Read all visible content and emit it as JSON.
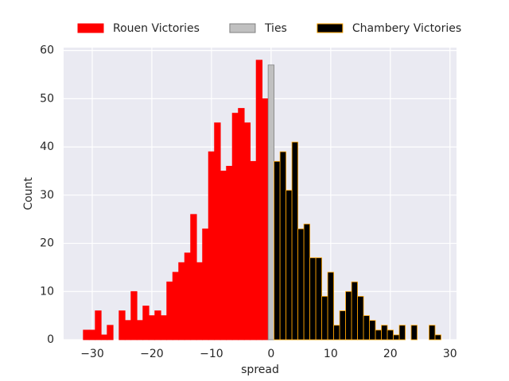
{
  "chart_data": {
    "type": "histogram",
    "x_label": "spread",
    "y_label": "Count",
    "xlim": [
      -34.8,
      31.1
    ],
    "ylim": [
      0,
      60.6
    ],
    "xticks": [
      {
        "value": -30,
        "label": "−30"
      },
      {
        "value": -20,
        "label": "−20"
      },
      {
        "value": -10,
        "label": "−10"
      },
      0,
      10,
      20,
      30
    ],
    "yticks": [
      0,
      10,
      20,
      30,
      40,
      50,
      60
    ],
    "grid": true,
    "legend_position": "top",
    "series": [
      {
        "name": "Rouen Victories",
        "color": "#ff0000",
        "edgecolor": "#ff0000",
        "bins": [
          -31.5,
          -30.5,
          -29.5,
          -28.5,
          -27.5,
          -26.5,
          -25.5,
          -24.5,
          -23.5,
          -22.5,
          -21.5,
          -20.5,
          -19.5,
          -18.5,
          -17.5,
          -16.5,
          -15.5,
          -14.5,
          -13.5,
          -12.5,
          -11.5,
          -10.5,
          -9.5,
          -8.5,
          -7.5,
          -6.5,
          -5.5,
          -4.5,
          -3.5,
          -2.5,
          -1.5,
          -0.5
        ],
        "values": [
          2,
          2,
          6,
          1,
          3,
          0,
          6,
          4,
          10,
          4,
          7,
          5,
          6,
          5,
          12,
          14,
          16,
          18,
          26,
          16,
          23,
          39,
          45,
          35,
          36,
          47,
          48,
          45,
          37,
          58,
          50
        ]
      },
      {
        "name": "Ties",
        "color": "#c0c0c0",
        "edgecolor": "#808080",
        "bins": [
          -0.5,
          0.5
        ],
        "values": [
          57
        ]
      },
      {
        "name": "Chambery Victories",
        "color": "#000000",
        "edgecolor": "#ffa500",
        "bins": [
          0.5,
          1.5,
          2.5,
          3.5,
          4.5,
          5.5,
          6.5,
          7.5,
          8.5,
          9.5,
          10.5,
          11.5,
          12.5,
          13.5,
          14.5,
          15.5,
          16.5,
          17.5,
          18.5,
          19.5,
          20.5,
          21.5,
          22.5,
          23.5,
          24.5,
          25.5,
          26.5,
          27.5,
          28.5
        ],
        "values": [
          37,
          39,
          31,
          41,
          23,
          24,
          17,
          17,
          9,
          14,
          3,
          6,
          10,
          12,
          9,
          5,
          4,
          2,
          3,
          2,
          1,
          3,
          0,
          3,
          0,
          0,
          3,
          1
        ]
      }
    ]
  }
}
